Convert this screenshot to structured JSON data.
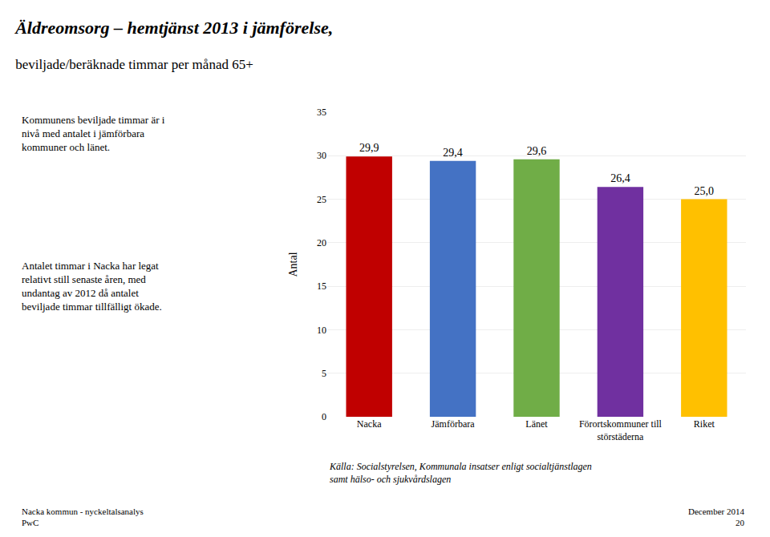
{
  "chart_data": {
    "type": "bar",
    "title": "Äldreomsorg – hemtjänst 2013 i jämförelse,",
    "subtitle": "beviljade/beräknade timmar per månad 65+",
    "categories": [
      "Nacka",
      "Jämförbara",
      "Länet",
      "Förortskommuner till\nstörstäderna",
      "Riket"
    ],
    "values": [
      29.9,
      29.4,
      29.6,
      26.4,
      25.0
    ],
    "value_labels": [
      "29,9",
      "29,4",
      "29,6",
      "26,4",
      "25,0"
    ],
    "colors": [
      "#C00000",
      "#4472C4",
      "#70AD47",
      "#7030A0",
      "#FFC000"
    ],
    "ylabel": "Antal",
    "ylim": [
      0,
      35
    ],
    "yticks": [
      0,
      5,
      10,
      15,
      20,
      25,
      30,
      35
    ],
    "grid": true,
    "data_labels": true,
    "annotations": [
      "Kommunens beviljade timmar är i\nnivå med antalet i jämförbara\nkommuner och länet.",
      "Antalet timmar i Nacka har legat\nrelativt still senaste åren, med\nundantag av 2012 då antalet\nbeviljade timmar tillfälligt ökade.",
      "Källa: Socialstyrelsen, Kommunala insatser enligt socialtjänstlagen\nsamt hälso- och sjukvårdslagen",
      "Nacka kommun - nyckeltalsanalys\nPwC",
      "December 2014\n20"
    ]
  }
}
